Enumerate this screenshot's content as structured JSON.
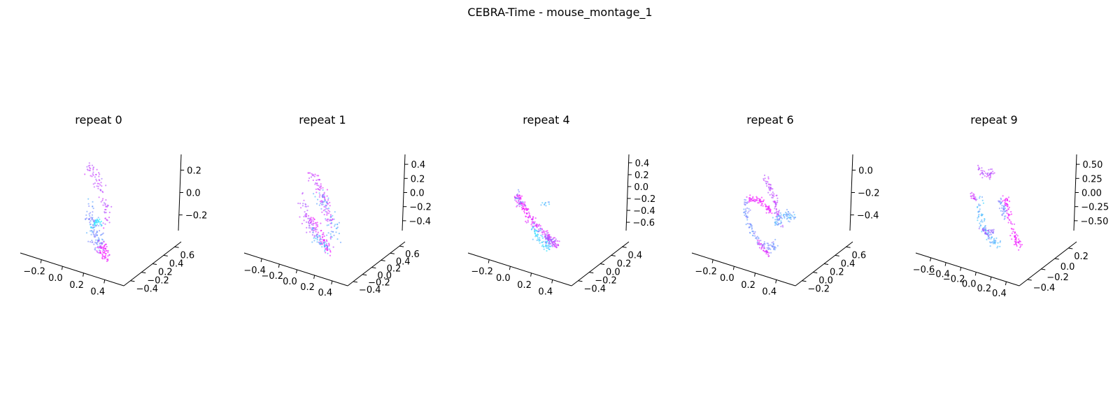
{
  "figure": {
    "title": "CEBRA-Time - mouse_montage_1"
  },
  "colors": {
    "low": "#00ffff",
    "high": "#ff00ff"
  },
  "chart_data": [
    {
      "type": "scatter",
      "title": "repeat 0",
      "x_ticks": [
        "−0.2",
        "0.0",
        "0.2",
        "0.4"
      ],
      "y_ticks": [
        "−0.4",
        "−0.2",
        "0.2",
        "0.4",
        "0.6"
      ],
      "z_ticks": [
        "0.2",
        "0.0",
        "−0.2"
      ],
      "strokes": [
        {
          "c": 0.15,
          "pts": [
            [
              -0.09,
              -0.38
            ],
            [
              -0.03,
              -0.33
            ],
            [
              0.04,
              -0.27
            ],
            [
              0.09,
              -0.33
            ]
          ],
          "n": 35,
          "s": 0.12
        },
        {
          "c": 0.75,
          "pts": [
            [
              -0.16,
              0.55
            ],
            [
              -0.05,
              0.44
            ],
            [
              0.05,
              0.28
            ],
            [
              0.14,
              0.1
            ],
            [
              0.22,
              -0.12
            ],
            [
              0.2,
              -0.35
            ]
          ],
          "n": 80,
          "s": 0.2
        },
        {
          "c": 0.45,
          "pts": [
            [
              -0.12,
              -0.06
            ],
            [
              -0.06,
              -0.33
            ],
            [
              0.02,
              -0.55
            ],
            [
              0.1,
              -0.68
            ]
          ],
          "n": 110,
          "s": 0.23
        },
        {
          "c": 0.95,
          "pts": [
            [
              0.1,
              -0.64
            ],
            [
              0.18,
              -0.74
            ],
            [
              0.22,
              -0.82
            ]
          ],
          "n": 60,
          "s": 0.2
        }
      ]
    },
    {
      "type": "scatter",
      "title": "repeat 1",
      "x_ticks": [
        "−0.4",
        "−0.2",
        "0.0",
        "0.2",
        "0.4"
      ],
      "y_ticks": [
        "−0.4",
        "−0.2",
        "0.0",
        "0.2",
        "0.4",
        "0.6"
      ],
      "z_ticks": [
        "0.4",
        "0.2",
        "0.0",
        "−0.2",
        "−0.4"
      ],
      "strokes": [
        {
          "c": 0.7,
          "pts": [
            [
              -0.36,
              0.08
            ],
            [
              -0.31,
              -0.14
            ],
            [
              -0.23,
              -0.32
            ],
            [
              -0.16,
              -0.44
            ]
          ],
          "n": 55,
          "s": 0.2
        },
        {
          "c": 0.8,
          "pts": [
            [
              -0.22,
              0.45
            ],
            [
              -0.08,
              0.34
            ],
            [
              0.05,
              0.15
            ],
            [
              0.14,
              -0.06
            ],
            [
              0.2,
              -0.3
            ]
          ],
          "n": 95,
          "s": 0.22
        },
        {
          "c": 0.35,
          "pts": [
            [
              0.0,
              0.1
            ],
            [
              0.12,
              -0.05
            ],
            [
              0.22,
              -0.3
            ],
            [
              0.28,
              -0.48
            ]
          ],
          "n": 60,
          "s": 0.3
        },
        {
          "c": 0.9,
          "pts": [
            [
              -0.18,
              -0.22
            ],
            [
              -0.04,
              -0.45
            ],
            [
              0.1,
              -0.6
            ],
            [
              0.22,
              -0.72
            ]
          ],
          "n": 80,
          "s": 0.16
        },
        {
          "c": 0.3,
          "pts": [
            [
              -0.12,
              -0.44
            ],
            [
              0.02,
              -0.58
            ],
            [
              0.14,
              -0.7
            ]
          ],
          "n": 45,
          "s": 0.16
        }
      ]
    },
    {
      "type": "scatter",
      "title": "repeat 4",
      "x_ticks": [
        "−0.2",
        "0.0",
        "0.2",
        "0.4"
      ],
      "y_ticks": [
        "−0.4",
        "−0.2",
        "0.0",
        "0.2",
        "0.4"
      ],
      "z_ticks": [
        "0.4",
        "0.2",
        "0.0",
        "−0.2",
        "−0.4",
        "−0.6"
      ],
      "strokes": [
        {
          "c": 0.95,
          "pts": [
            [
              -0.52,
              0.1
            ],
            [
              -0.42,
              -0.04
            ],
            [
              -0.3,
              -0.2
            ]
          ],
          "n": 70,
          "s": 0.14
        },
        {
          "c": 0.55,
          "pts": [
            [
              -0.54,
              0.14
            ],
            [
              -0.44,
              -0.02
            ]
          ],
          "n": 25,
          "s": 0.14
        },
        {
          "c": 0.85,
          "pts": [
            [
              -0.3,
              -0.22
            ],
            [
              -0.1,
              -0.38
            ],
            [
              0.1,
              -0.52
            ],
            [
              0.28,
              -0.66
            ]
          ],
          "n": 110,
          "s": 0.13
        },
        {
          "c": 0.2,
          "pts": [
            [
              -0.22,
              -0.4
            ],
            [
              -0.04,
              -0.55
            ],
            [
              0.1,
              -0.68
            ]
          ],
          "n": 70,
          "s": 0.16
        },
        {
          "c": 0.6,
          "pts": [
            [
              0.04,
              -0.5
            ],
            [
              0.22,
              -0.62
            ]
          ],
          "n": 40,
          "s": 0.12
        },
        {
          "c": 0.3,
          "pts": [
            [
              -0.06,
              -0.03
            ],
            [
              0.14,
              -0.01
            ]
          ],
          "n": 10,
          "s": 0.05
        }
      ]
    },
    {
      "type": "scatter",
      "title": "repeat 6",
      "x_ticks": [
        "−0.2",
        "0.0",
        "0.2",
        "0.4"
      ],
      "y_ticks": [
        "−0.2",
        "0.0",
        "0.2",
        "0.4",
        "0.6"
      ],
      "z_ticks": [
        "0.0",
        "−0.2",
        "−0.4"
      ],
      "strokes": [
        {
          "c": 0.95,
          "pts": [
            [
              -0.4,
              0.08
            ],
            [
              -0.2,
              0.05
            ],
            [
              -0.02,
              -0.05
            ],
            [
              0.06,
              -0.14
            ]
          ],
          "n": 75,
          "s": 0.1
        },
        {
          "c": 0.75,
          "pts": [
            [
              -0.08,
              0.4
            ],
            [
              0.02,
              0.26
            ],
            [
              0.12,
              0.08
            ],
            [
              0.2,
              -0.15
            ],
            [
              0.26,
              -0.35
            ]
          ],
          "n": 80,
          "s": 0.13
        },
        {
          "c": 0.45,
          "pts": [
            [
              -0.44,
              0.04
            ],
            [
              -0.42,
              -0.2
            ],
            [
              -0.32,
              -0.4
            ],
            [
              -0.16,
              -0.6
            ],
            [
              0.0,
              -0.7
            ],
            [
              0.14,
              -0.64
            ]
          ],
          "n": 110,
          "s": 0.12
        },
        {
          "c": 0.9,
          "pts": [
            [
              -0.18,
              -0.6
            ],
            [
              -0.06,
              -0.72
            ],
            [
              0.06,
              -0.82
            ]
          ],
          "n": 30,
          "s": 0.1
        },
        {
          "c": 0.35,
          "pts": [
            [
              0.16,
              -0.28
            ],
            [
              0.34,
              -0.2
            ],
            [
              0.52,
              -0.18
            ]
          ],
          "n": 70,
          "s": 0.18
        }
      ]
    },
    {
      "type": "scatter",
      "title": "repeat 9",
      "x_ticks": [
        "−0.6",
        "−0.4",
        "−0.2",
        "0.0",
        "0.2",
        "0.4"
      ],
      "y_ticks": [
        "−0.4",
        "−0.2",
        "0.0",
        "0.2"
      ],
      "z_ticks": [
        "0.50",
        "0.25",
        "0.00",
        "−0.25",
        "−0.50"
      ],
      "strokes": [
        {
          "c": 0.75,
          "pts": [
            [
              -0.26,
              0.52
            ],
            [
              -0.14,
              0.42
            ],
            [
              -0.04,
              0.4
            ],
            [
              0.02,
              0.46
            ]
          ],
          "n": 45,
          "s": 0.1
        },
        {
          "c": 0.8,
          "pts": [
            [
              -0.4,
              0.12
            ],
            [
              -0.32,
              0.04
            ]
          ],
          "n": 20,
          "s": 0.08
        },
        {
          "c": 0.3,
          "pts": [
            [
              -0.24,
              0.04
            ],
            [
              -0.22,
              -0.2
            ],
            [
              -0.14,
              -0.42
            ],
            [
              0.0,
              -0.56
            ],
            [
              0.16,
              -0.62
            ]
          ],
          "n": 90,
          "s": 0.14
        },
        {
          "c": 0.6,
          "pts": [
            [
              -0.18,
              -0.38
            ],
            [
              -0.04,
              -0.48
            ],
            [
              0.06,
              -0.44
            ]
          ],
          "n": 40,
          "s": 0.12
        },
        {
          "c": 0.45,
          "pts": [
            [
              0.16,
              0.06
            ],
            [
              0.24,
              -0.1
            ],
            [
              0.28,
              -0.26
            ]
          ],
          "n": 40,
          "s": 0.12
        },
        {
          "c": 0.95,
          "pts": [
            [
              0.26,
              0.08
            ],
            [
              0.32,
              -0.02
            ],
            [
              0.36,
              -0.26
            ],
            [
              0.44,
              -0.46
            ],
            [
              0.5,
              -0.58
            ],
            [
              0.58,
              -0.66
            ]
          ],
          "n": 90,
          "s": 0.13
        }
      ]
    }
  ]
}
